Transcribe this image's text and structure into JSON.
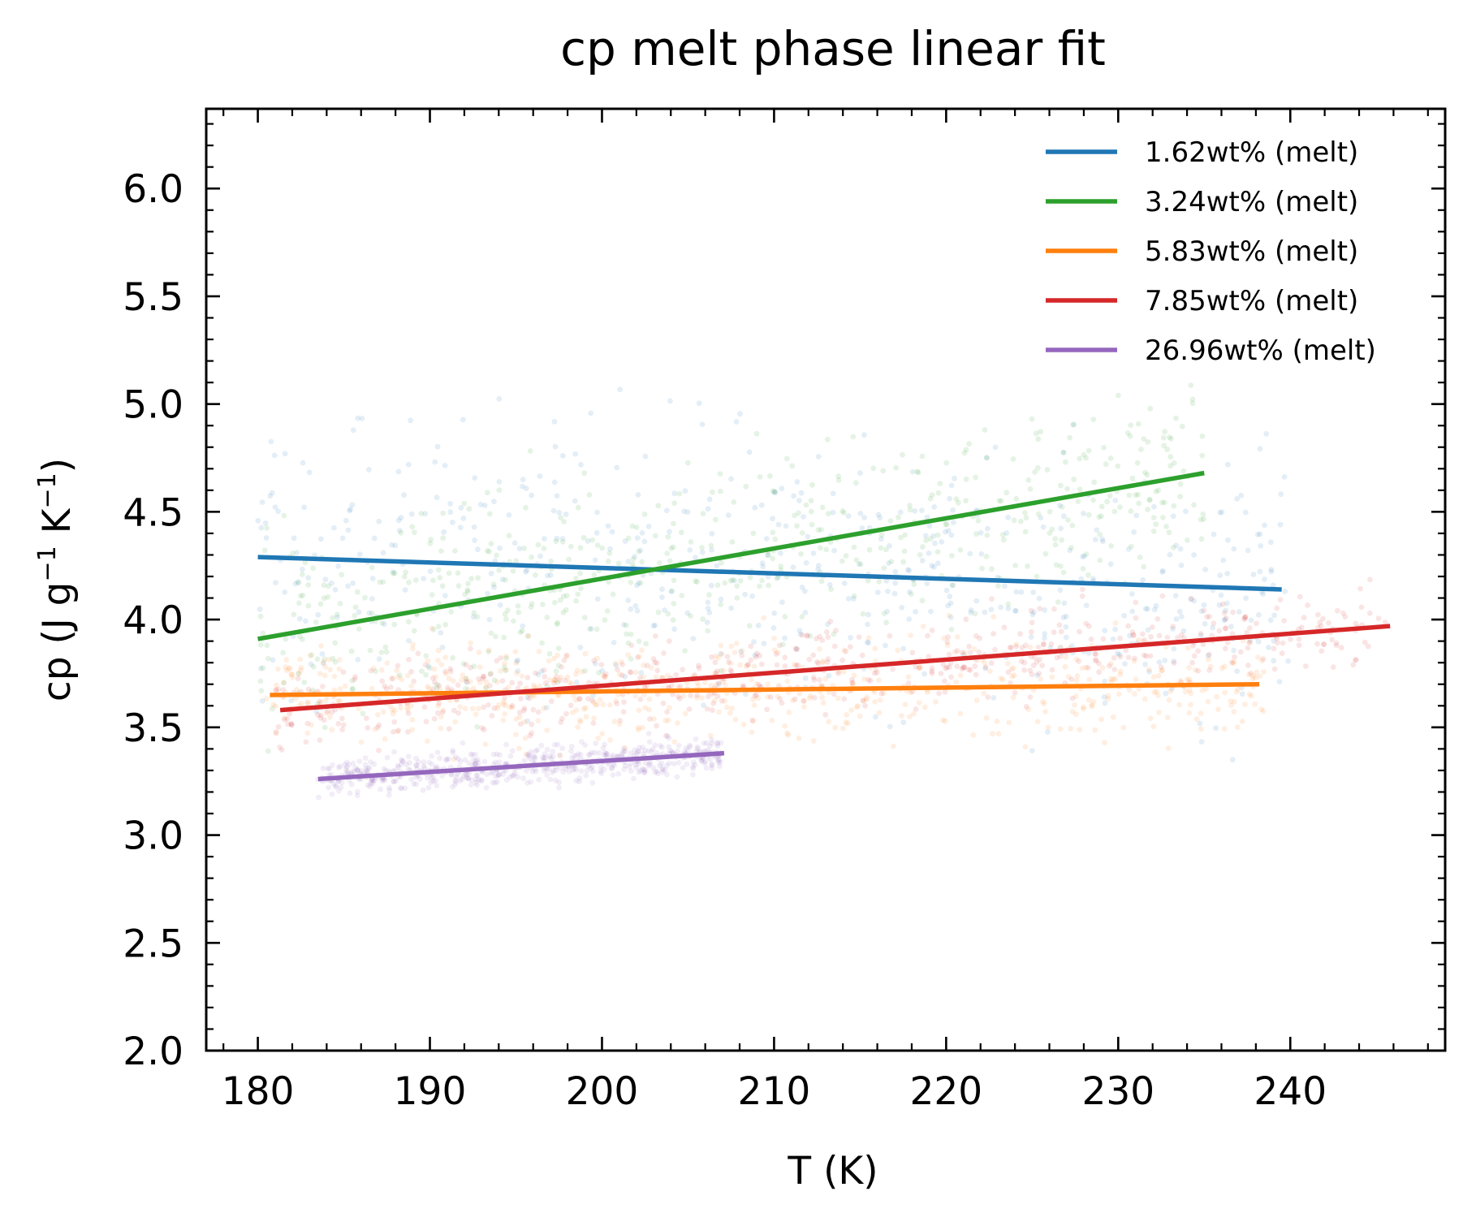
{
  "chart_data": {
    "type": "line",
    "title": "cp melt phase linear fit",
    "xlabel": "T (K)",
    "ylabel_main": "cp (J g",
    "ylabel_sup1": "−1",
    "ylabel_mid": " K",
    "ylabel_sup2": "−1",
    "ylabel_end": ")",
    "xlim": [
      177,
      249
    ],
    "ylim": [
      2.0,
      6.37
    ],
    "x_ticks": [
      "180",
      "190",
      "200",
      "210",
      "220",
      "230",
      "240"
    ],
    "y_ticks": [
      "2.0",
      "2.5",
      "3.0",
      "3.5",
      "4.0",
      "4.5",
      "5.0",
      "5.5",
      "6.0"
    ],
    "grid": false,
    "legend_position": "top-right",
    "scatter_alpha": 0.12,
    "series": [
      {
        "name": "1.62wt% (melt)",
        "color": "#1f77b4",
        "fit": [
          [
            180.0,
            4.29
          ],
          [
            239.5,
            4.14
          ]
        ],
        "scatter_range": [
          180,
          240
        ],
        "scatter_mean": [
          4.29,
          4.14
        ],
        "scatter_spread": 0.45
      },
      {
        "name": "3.24wt% (melt)",
        "color": "#2ca02c",
        "fit": [
          [
            180.0,
            3.91
          ],
          [
            235.0,
            4.68
          ]
        ],
        "scatter_range": [
          180,
          235
        ],
        "scatter_mean": [
          3.91,
          4.68
        ],
        "scatter_spread": 0.32
      },
      {
        "name": "5.83wt% (melt)",
        "color": "#ff7f0e",
        "fit": [
          [
            180.7,
            3.65
          ],
          [
            238.2,
            3.7
          ]
        ],
        "scatter_range": [
          180.5,
          238.5
        ],
        "scatter_mean": [
          3.65,
          3.7
        ],
        "scatter_spread": 0.17
      },
      {
        "name": "7.85wt% (melt)",
        "color": "#d62728",
        "fit": [
          [
            181.3,
            3.58
          ],
          [
            245.8,
            3.97
          ]
        ],
        "scatter_range": [
          181,
          246
        ],
        "scatter_mean": [
          3.58,
          3.97
        ],
        "scatter_spread": 0.14
      },
      {
        "name": "26.96wt% (melt)",
        "color": "#9467bd",
        "fit": [
          [
            183.5,
            3.26
          ],
          [
            207.1,
            3.38
          ]
        ],
        "scatter_range": [
          183.5,
          207
        ],
        "scatter_mean": [
          3.26,
          3.38
        ],
        "scatter_spread": 0.06
      }
    ]
  }
}
